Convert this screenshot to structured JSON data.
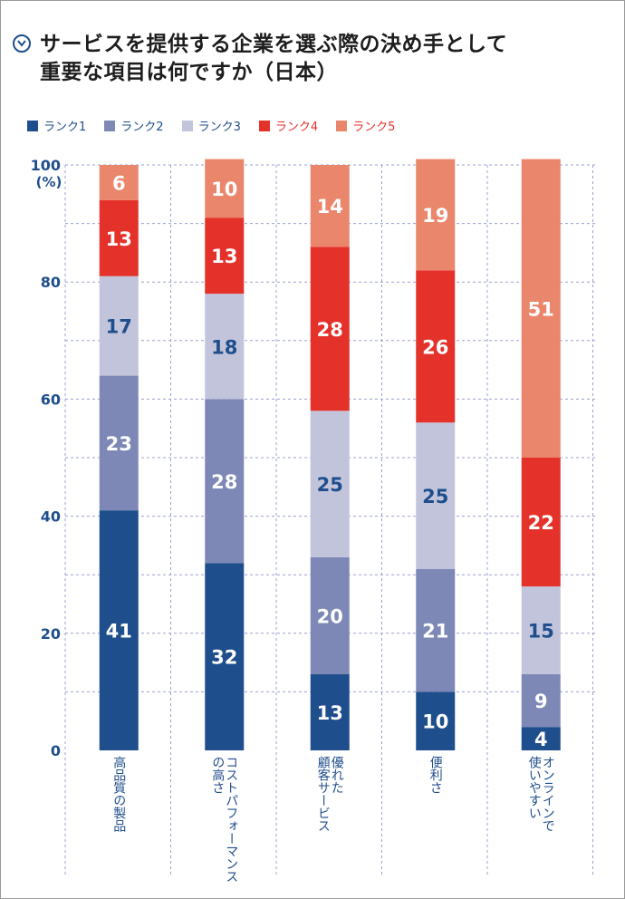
{
  "title_lines": [
    "サービスを提供する企業を選ぶ際の決め手として",
    "重要な項目は何ですか（日本）"
  ],
  "colors": {
    "rank1": "#1f4e8c",
    "rank2": "#7d88b6",
    "rank3": "#c2c4dc",
    "rank4": "#e4322b",
    "rank5": "#ea866b",
    "axis_text": "#1f4e8c",
    "grid": "#9aa0d0"
  },
  "chart_data": {
    "type": "bar",
    "stacked": true,
    "categories": [
      "高品質の製品",
      "コストパフォーマンスの高さ",
      "優れた顧客サービス",
      "便利さ",
      "オンラインで使いやすい"
    ],
    "category_lines": [
      [
        "高品質の製品"
      ],
      [
        "コストパフォーマンス",
        "の高さ"
      ],
      [
        "優れた",
        "顧客サービス"
      ],
      [
        "便利さ"
      ],
      [
        "オンラインで",
        "使いやすい"
      ]
    ],
    "series": [
      {
        "name": "ランク1",
        "values": [
          41,
          32,
          13,
          10,
          4
        ]
      },
      {
        "name": "ランク2",
        "values": [
          23,
          28,
          20,
          21,
          9
        ]
      },
      {
        "name": "ランク3",
        "values": [
          17,
          18,
          25,
          25,
          15
        ]
      },
      {
        "name": "ランク4",
        "values": [
          13,
          13,
          28,
          26,
          22
        ]
      },
      {
        "name": "ランク5",
        "values": [
          6,
          10,
          14,
          19,
          51
        ]
      }
    ],
    "ylim": [
      0,
      100
    ],
    "yticks": [
      0,
      20,
      40,
      60,
      80,
      100
    ],
    "yunit": "(%)",
    "legend_position": "top-left",
    "grid": true
  }
}
